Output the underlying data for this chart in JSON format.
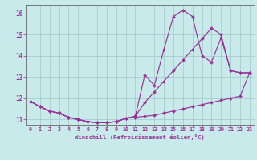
{
  "xlabel": "Windchill (Refroidissement éolien,°C)",
  "bg_color": "#c8eaea",
  "grid_color": "#a0c8c8",
  "line_color": "#993399",
  "spine_color": "#666666",
  "xlim": [
    -0.5,
    23.5
  ],
  "ylim": [
    10.75,
    16.4
  ],
  "xticks": [
    0,
    1,
    2,
    3,
    4,
    5,
    6,
    7,
    8,
    9,
    10,
    11,
    12,
    13,
    14,
    15,
    16,
    17,
    18,
    19,
    20,
    21,
    22,
    23
  ],
  "yticks": [
    11,
    12,
    13,
    14,
    15,
    16
  ],
  "curve_bottom_x": [
    0,
    1,
    2,
    3,
    4,
    5,
    6,
    7,
    8,
    9,
    10,
    11,
    12,
    13,
    14,
    15,
    16,
    17,
    18,
    19,
    20,
    21,
    22,
    23
  ],
  "curve_bottom_y": [
    11.85,
    11.6,
    11.4,
    11.3,
    11.1,
    11.0,
    10.9,
    10.85,
    10.85,
    10.9,
    11.05,
    11.1,
    11.15,
    11.2,
    11.3,
    11.4,
    11.5,
    11.6,
    11.7,
    11.8,
    11.9,
    12.0,
    12.1,
    13.2
  ],
  "curve_spike_x": [
    0,
    1,
    2,
    3,
    4,
    5,
    6,
    7,
    8,
    9,
    10,
    11,
    12,
    13,
    14,
    15,
    16,
    17,
    18,
    19,
    20,
    21,
    22,
    23
  ],
  "curve_spike_y": [
    11.85,
    11.6,
    11.4,
    11.3,
    11.1,
    11.0,
    10.9,
    10.85,
    10.85,
    10.9,
    11.05,
    11.15,
    13.1,
    12.6,
    14.3,
    15.85,
    16.15,
    15.85,
    14.0,
    13.7,
    14.85,
    13.3,
    13.2,
    13.2
  ],
  "curve_diag_x": [
    0,
    1,
    2,
    3,
    4,
    5,
    6,
    7,
    8,
    9,
    10,
    11,
    12,
    13,
    14,
    15,
    16,
    17,
    18,
    19,
    20,
    21,
    22,
    23
  ],
  "curve_diag_y": [
    11.85,
    11.6,
    11.4,
    11.3,
    11.1,
    11.0,
    10.9,
    10.85,
    10.85,
    10.9,
    11.05,
    11.15,
    11.8,
    12.3,
    12.8,
    13.3,
    13.8,
    14.3,
    14.8,
    15.3,
    15.0,
    13.3,
    13.2,
    13.2
  ]
}
